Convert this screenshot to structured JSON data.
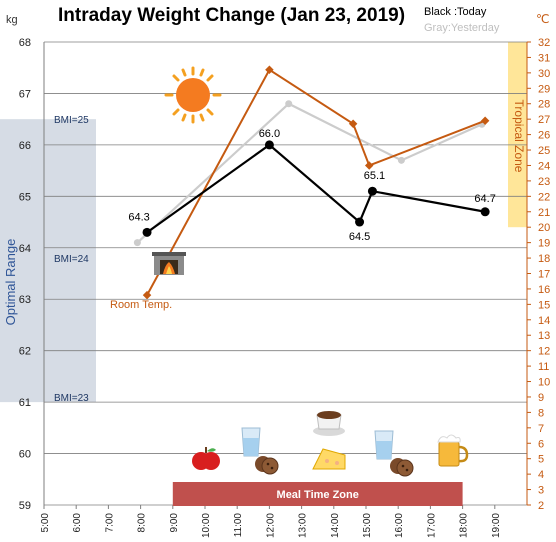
{
  "chart_data": {
    "type": "line",
    "title": "Intraday Weight Change (Jan 23, 2019)",
    "legend": {
      "today": "Black :Today",
      "yesterday": "Gray:Yesterday",
      "placement": "top-right"
    },
    "y_left": {
      "unit": "kg",
      "range": [
        59,
        68
      ],
      "ticks": [
        "59",
        "60",
        "61",
        "62",
        "63",
        "64",
        "65",
        "66",
        "67",
        "68"
      ]
    },
    "y_right": {
      "unit": "℃",
      "range": [
        2,
        32
      ],
      "ticks": [
        "2",
        "3",
        "4",
        "5",
        "6",
        "7",
        "8",
        "9",
        "10",
        "11",
        "12",
        "13",
        "14",
        "15",
        "16",
        "17",
        "18",
        "19",
        "20",
        "21",
        "22",
        "23",
        "24",
        "25",
        "26",
        "27",
        "28",
        "29",
        "30",
        "31",
        "32"
      ]
    },
    "x_axis": {
      "range": [
        5,
        20
      ],
      "ticks": [
        "5:00",
        "6:00",
        "7:00",
        "8:00",
        "9:00",
        "10:00",
        "11:00",
        "12:00",
        "13:00",
        "14:00",
        "15:00",
        "16:00",
        "17:00",
        "18:00",
        "19:00"
      ]
    },
    "grid": true,
    "series": [
      {
        "name": "Today",
        "color": "#000000",
        "axis": "left",
        "x": [
          8.2,
          12.0,
          14.8,
          15.2,
          18.7
        ],
        "y": [
          64.3,
          66.0,
          64.5,
          65.1,
          64.7
        ],
        "labels": [
          "64.3",
          "66.0",
          "64.5",
          "65.1",
          "64.7"
        ]
      },
      {
        "name": "Yesterday",
        "color": "#cccccc",
        "axis": "left",
        "x": [
          7.9,
          12.6,
          16.1,
          18.6
        ],
        "y": [
          64.1,
          66.8,
          65.7,
          66.4
        ]
      },
      {
        "name": "Room Temp.",
        "color": "#c55a11",
        "axis": "right",
        "x": [
          8.2,
          12.0,
          14.6,
          15.1,
          18.7
        ],
        "y": [
          15.6,
          30.2,
          26.7,
          24.0,
          26.9
        ]
      }
    ],
    "bands": {
      "optimal": {
        "label": "Optimal Range",
        "y_range": [
          61,
          66.5
        ],
        "markers": [
          {
            "y": 66.5,
            "label": "BMI=25"
          },
          {
            "y": 63.8,
            "label": "BMI=24"
          },
          {
            "y": 61.1,
            "label": "BMI=23"
          }
        ]
      },
      "tropical": {
        "label": "Tropical Zone",
        "temp_range": [
          20,
          32
        ]
      },
      "meal_time": {
        "label": "Meal Time Zone",
        "x_range": [
          9,
          18
        ]
      }
    },
    "annotations": {
      "room_temp_label": "Room Temp."
    }
  },
  "icons": [
    "sun-icon",
    "fireplace-icon",
    "apple-icon",
    "water-glass-icon",
    "cookies-icon",
    "coffee-cup-icon",
    "cake-slice-icon",
    "beer-mug-icon"
  ],
  "colors": {
    "today": "#000000",
    "yesterday": "#cccccc",
    "temperature": "#c55a11",
    "optimal_band": "#d6dce5",
    "tropical_band": "#ffe699",
    "meal_band": "#c0504d"
  }
}
